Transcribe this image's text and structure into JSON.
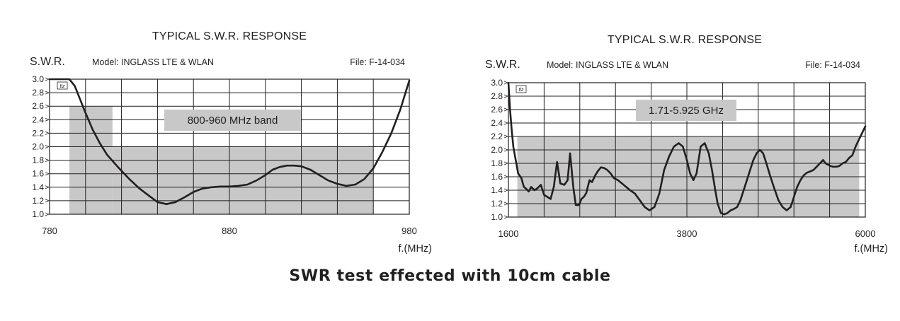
{
  "caption": "SWR test effected with 10cm cable",
  "colors": {
    "ink": "#231f20",
    "band": "#c8c8c8",
    "grid": "#231f20",
    "background": "#ffffff"
  },
  "chart_data": [
    {
      "type": "line",
      "title": "TYPICAL S.W.R. RESPONSE",
      "ylabel": "S.W.R.",
      "xlabel": "f.(MHz)",
      "model": "Model: INGLASS LTE & WLAN",
      "file": "File: F-14-034",
      "logo": "tlz",
      "band_label": "800-960 MHz band",
      "xlim": [
        780,
        980
      ],
      "ylim": [
        1.0,
        3.0
      ],
      "x_ticks": [
        780,
        880,
        980
      ],
      "y_ticks": [
        "1.0",
        "1.2",
        "1.4",
        "1.6",
        "1.8",
        "2.0",
        "2.2",
        "2.4",
        "2.6",
        "2.8",
        "3.0"
      ],
      "x_grid_count": 10,
      "grid": true,
      "band_regions": [
        {
          "x": [
            791,
            815
          ],
          "y_top": 2.6
        },
        {
          "x": [
            815,
            960
          ],
          "y_top": 2.0
        }
      ],
      "series": [
        {
          "x": [
            780,
            791,
            794,
            800,
            804,
            808,
            812,
            818,
            824,
            830,
            836,
            840,
            845,
            850,
            855,
            860,
            865,
            870,
            875,
            880,
            885,
            890,
            895,
            900,
            904,
            908,
            912,
            916,
            920,
            925,
            930,
            935,
            940,
            945,
            950,
            955,
            960,
            965,
            970,
            975,
            980
          ],
          "y": [
            3.0,
            3.0,
            2.9,
            2.5,
            2.25,
            2.05,
            1.88,
            1.7,
            1.53,
            1.38,
            1.26,
            1.18,
            1.15,
            1.18,
            1.25,
            1.33,
            1.38,
            1.4,
            1.41,
            1.41,
            1.42,
            1.44,
            1.5,
            1.58,
            1.66,
            1.7,
            1.72,
            1.72,
            1.71,
            1.66,
            1.58,
            1.5,
            1.45,
            1.42,
            1.44,
            1.52,
            1.68,
            1.92,
            2.2,
            2.55,
            2.98
          ]
        }
      ]
    },
    {
      "type": "line",
      "title": "TYPICAL S.W.R. RESPONSE",
      "ylabel": "S.W.R.",
      "xlabel": "f.(MHz)",
      "model": "Model: INGLASS LTE & WLAN",
      "file": "File: F-14-034",
      "logo": "tlz",
      "band_label": "1.71-5.925 GHz",
      "xlim": [
        1600,
        6000
      ],
      "ylim": [
        1.0,
        3.0
      ],
      "x_ticks": [
        1600,
        3800,
        6000
      ],
      "y_ticks": [
        "1.0",
        "1.2",
        "1.4",
        "1.6",
        "1.8",
        "2.0",
        "2.2",
        "2.4",
        "2.6",
        "2.8",
        "3.0"
      ],
      "x_grid_count": 10,
      "grid": true,
      "band_regions": [
        {
          "x": [
            1710,
            5925
          ],
          "y_top": 2.2
        }
      ],
      "series": [
        {
          "x": [
            1600,
            1620,
            1640,
            1660,
            1690,
            1720,
            1760,
            1790,
            1820,
            1850,
            1880,
            1920,
            1960,
            2000,
            2040,
            2080,
            2120,
            2160,
            2200,
            2240,
            2290,
            2330,
            2360,
            2400,
            2430,
            2470,
            2500,
            2530,
            2560,
            2600,
            2630,
            2670,
            2700,
            2740,
            2780,
            2820,
            2860,
            2900,
            2950,
            3000,
            3050,
            3100,
            3160,
            3220,
            3280,
            3340,
            3400,
            3460,
            3520,
            3580,
            3640,
            3700,
            3750,
            3800,
            3840,
            3880,
            3920,
            3970,
            4020,
            4070,
            4110,
            4150,
            4180,
            4220,
            4260,
            4300,
            4340,
            4380,
            4420,
            4460,
            4500,
            4540,
            4580,
            4620,
            4660,
            4700,
            4740,
            4780,
            4830,
            4880,
            4930,
            4980,
            5030,
            5080,
            5120,
            5160,
            5200,
            5240,
            5280,
            5320,
            5360,
            5400,
            5440,
            5480,
            5510,
            5540,
            5570,
            5600,
            5640,
            5680,
            5720,
            5760,
            5800,
            5840,
            5880,
            5920,
            5960,
            6000
          ],
          "y": [
            3.0,
            2.6,
            2.3,
            2.05,
            1.85,
            1.65,
            1.58,
            1.45,
            1.42,
            1.38,
            1.45,
            1.4,
            1.43,
            1.48,
            1.33,
            1.3,
            1.27,
            1.45,
            1.82,
            1.5,
            1.48,
            1.55,
            1.95,
            1.45,
            1.18,
            1.18,
            1.27,
            1.3,
            1.36,
            1.55,
            1.52,
            1.62,
            1.68,
            1.74,
            1.73,
            1.7,
            1.65,
            1.58,
            1.55,
            1.5,
            1.45,
            1.4,
            1.35,
            1.25,
            1.15,
            1.1,
            1.15,
            1.35,
            1.7,
            1.9,
            2.05,
            2.1,
            2.05,
            1.85,
            1.65,
            1.55,
            1.65,
            2.05,
            2.1,
            1.95,
            1.7,
            1.4,
            1.2,
            1.06,
            1.04,
            1.06,
            1.1,
            1.12,
            1.15,
            1.25,
            1.4,
            1.55,
            1.7,
            1.85,
            1.95,
            2.0,
            1.95,
            1.8,
            1.6,
            1.42,
            1.25,
            1.15,
            1.1,
            1.15,
            1.3,
            1.45,
            1.55,
            1.62,
            1.66,
            1.68,
            1.7,
            1.75,
            1.8,
            1.85,
            1.8,
            1.78,
            1.76,
            1.75,
            1.75,
            1.76,
            1.8,
            1.82,
            1.88,
            1.92,
            2.05,
            2.15,
            2.25,
            2.35
          ]
        }
      ]
    }
  ]
}
